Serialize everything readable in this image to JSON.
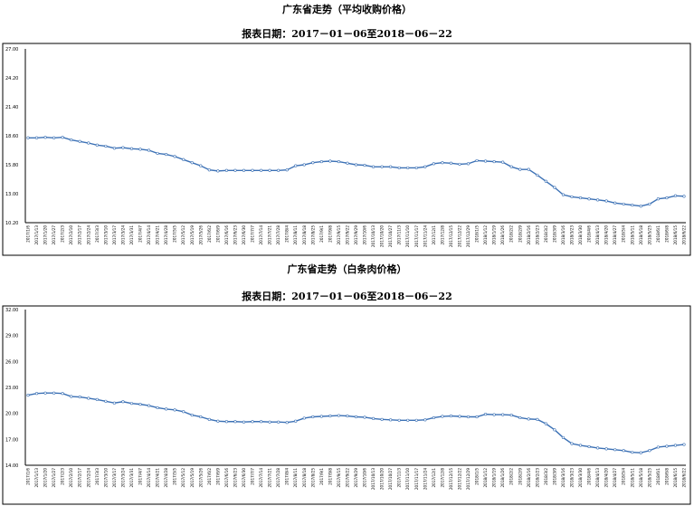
{
  "chart_data": [
    {
      "type": "line",
      "title": "广东省走势（平均收购价格）",
      "subtitle": "报表日期：2017－01－06至2018－06－22",
      "yticks": [
        "10.20",
        "13.00",
        "15.80",
        "18.60",
        "21.40",
        "24.20",
        "27.00"
      ],
      "ylim": [
        10.2,
        27.0
      ],
      "x": [
        "2017/1/6",
        "2017/1/13",
        "2017/1/20",
        "2017/1/27",
        "2017/2/3",
        "2017/2/10",
        "2017/2/17",
        "2017/2/24",
        "2017/3/3",
        "2017/3/10",
        "2017/3/17",
        "2017/3/24",
        "2017/3/31",
        "2017/4/7",
        "2017/4/14",
        "2017/4/21",
        "2017/4/28",
        "2017/5/5",
        "2017/5/12",
        "2017/5/19",
        "2017/5/26",
        "2017/6/2",
        "2017/6/9",
        "2017/6/16",
        "2017/6/23",
        "2017/6/30",
        "2017/7/7",
        "2017/7/14",
        "2017/7/21",
        "2017/7/28",
        "2017/8/4",
        "2017/8/11",
        "2017/8/18",
        "2017/8/25",
        "2017/9/1",
        "2017/9/8",
        "2017/9/15",
        "2017/9/22",
        "2017/9/29",
        "2017/10/6",
        "2017/10/13",
        "2017/10/20",
        "2017/10/27",
        "2017/11/3",
        "2017/11/10",
        "2017/11/17",
        "2017/11/24",
        "2017/12/1",
        "2017/12/8",
        "2017/12/15",
        "2017/12/22",
        "2017/12/29",
        "2018/1/5",
        "2018/1/12",
        "2018/1/19",
        "2018/1/26",
        "2018/2/2",
        "2018/2/9",
        "2018/2/16",
        "2018/2/23",
        "2018/3/2",
        "2018/3/9",
        "2018/3/16",
        "2018/3/23",
        "2018/3/30",
        "2018/4/6",
        "2018/4/13",
        "2018/4/20",
        "2018/4/27",
        "2018/5/4",
        "2018/5/11",
        "2018/5/18",
        "2018/5/25",
        "2018/6/1",
        "2018/6/8",
        "2018/6/15",
        "2018/6/22"
      ],
      "series": [
        {
          "values": [
            18.4,
            18.4,
            18.45,
            18.4,
            18.45,
            18.2,
            18.05,
            17.9,
            17.7,
            17.6,
            17.4,
            17.45,
            17.35,
            17.3,
            17.2,
            16.9,
            16.8,
            16.6,
            16.3,
            16.0,
            15.7,
            15.3,
            15.2,
            15.25,
            15.25,
            15.25,
            15.25,
            15.25,
            15.25,
            15.25,
            15.3,
            15.7,
            15.8,
            16.0,
            16.1,
            16.15,
            16.1,
            15.95,
            15.8,
            15.75,
            15.6,
            15.6,
            15.6,
            15.5,
            15.5,
            15.5,
            15.6,
            15.9,
            16.0,
            15.95,
            15.85,
            15.9,
            16.2,
            16.15,
            16.1,
            16.05,
            15.6,
            15.35,
            15.35,
            14.8,
            14.2,
            13.6,
            12.9,
            12.7,
            12.6,
            12.5,
            12.4,
            12.3,
            12.1,
            12.0,
            11.9,
            11.8,
            12.0,
            12.5,
            12.6,
            12.8,
            12.75
          ]
        }
      ]
    },
    {
      "type": "line",
      "title": "广东省走势（白条肉价格）",
      "subtitle": "报表日期：2017－01－06至2018－06－22",
      "yticks": [
        "14.00",
        "17.00",
        "20.00",
        "23.00",
        "26.00",
        "29.00",
        "32.00"
      ],
      "ylim": [
        14.0,
        32.0
      ],
      "x": [
        "2017/1/6",
        "2017/1/13",
        "2017/1/20",
        "2017/1/27",
        "2017/2/3",
        "2017/2/10",
        "2017/2/17",
        "2017/2/24",
        "2017/3/3",
        "2017/3/10",
        "2017/3/17",
        "2017/3/24",
        "2017/3/31",
        "2017/4/7",
        "2017/4/14",
        "2017/4/21",
        "2017/4/28",
        "2017/5/5",
        "2017/5/12",
        "2017/5/19",
        "2017/5/26",
        "2017/6/2",
        "2017/6/9",
        "2017/6/16",
        "2017/6/23",
        "2017/6/30",
        "2017/7/7",
        "2017/7/14",
        "2017/7/21",
        "2017/7/28",
        "2017/8/4",
        "2017/8/11",
        "2017/8/18",
        "2017/8/25",
        "2017/9/1",
        "2017/9/8",
        "2017/9/15",
        "2017/9/22",
        "2017/9/29",
        "2017/10/6",
        "2017/10/13",
        "2017/10/20",
        "2017/10/27",
        "2017/11/3",
        "2017/11/10",
        "2017/11/17",
        "2017/11/24",
        "2017/12/1",
        "2017/12/8",
        "2017/12/15",
        "2017/12/22",
        "2017/12/29",
        "2018/1/5",
        "2018/1/12",
        "2018/1/19",
        "2018/1/26",
        "2018/2/2",
        "2018/2/9",
        "2018/2/16",
        "2018/2/23",
        "2018/3/2",
        "2018/3/9",
        "2018/3/16",
        "2018/3/23",
        "2018/3/30",
        "2018/4/6",
        "2018/4/13",
        "2018/4/20",
        "2018/4/27",
        "2018/5/4",
        "2018/5/11",
        "2018/5/18",
        "2018/5/25",
        "2018/6/1",
        "2018/6/8",
        "2018/6/15",
        "2018/6/22"
      ],
      "series": [
        {
          "values": [
            22.1,
            22.3,
            22.35,
            22.35,
            22.3,
            21.95,
            21.9,
            21.75,
            21.6,
            21.4,
            21.2,
            21.35,
            21.15,
            21.05,
            20.9,
            20.65,
            20.5,
            20.4,
            20.2,
            19.8,
            19.6,
            19.3,
            19.1,
            19.05,
            19.05,
            19.0,
            19.05,
            19.05,
            19.0,
            19.0,
            18.95,
            19.1,
            19.45,
            19.6,
            19.65,
            19.7,
            19.75,
            19.7,
            19.6,
            19.55,
            19.4,
            19.3,
            19.25,
            19.2,
            19.2,
            19.2,
            19.25,
            19.5,
            19.65,
            19.7,
            19.65,
            19.6,
            19.6,
            19.9,
            19.85,
            19.85,
            19.8,
            19.5,
            19.35,
            19.3,
            18.8,
            18.1,
            17.2,
            16.5,
            16.3,
            16.15,
            16.0,
            15.9,
            15.8,
            15.7,
            15.5,
            15.45,
            15.7,
            16.1,
            16.2,
            16.3,
            16.4
          ]
        }
      ]
    }
  ],
  "colors": {
    "line": "#3c71b5",
    "frame": "#000000",
    "background": "#ffffff"
  }
}
